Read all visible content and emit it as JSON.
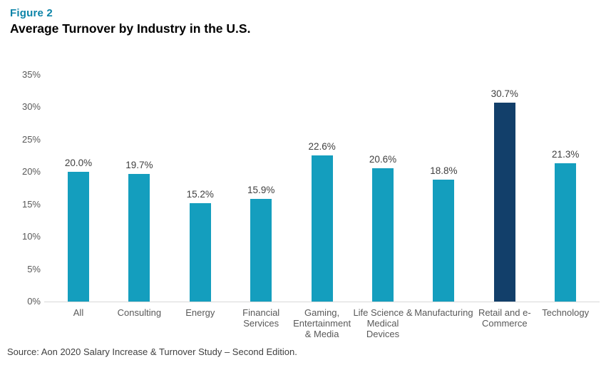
{
  "figure_label": "Figure 2",
  "title": "Average Turnover by Industry in the U.S.",
  "source": "Source: Aon 2020 Salary Increase & Turnover Study – Second Edition.",
  "colors": {
    "figure_label_text": "#0C84A8",
    "title_text": "#000000",
    "axis_text": "#595959",
    "value_label_text": "#404040",
    "source_text": "#404040",
    "baseline": "#D9D9D9",
    "bar": "#149EBE",
    "bar_highlight": "#123F6A"
  },
  "chart_data": {
    "type": "bar",
    "title": "Average Turnover by Industry in the U.S.",
    "xlabel": "",
    "ylabel": "",
    "categories": [
      "All",
      "Consulting",
      "Energy",
      "Financial Services",
      "Gaming, Entertainment & Media",
      "Life Science & Medical Devices",
      "Manufacturing",
      "Retail and e-Commerce",
      "Technology"
    ],
    "category_label_lines": [
      [
        "All"
      ],
      [
        "Consulting"
      ],
      [
        "Energy"
      ],
      [
        "Financial",
        "Services"
      ],
      [
        "Gaming,",
        "Entertainment",
        "& Media"
      ],
      [
        "Life Science &",
        "Medical",
        "Devices"
      ],
      [
        "Manufacturing"
      ],
      [
        "Retail and e-",
        "Commerce"
      ],
      [
        "Technology"
      ]
    ],
    "values": [
      20.0,
      19.7,
      15.2,
      15.9,
      22.6,
      20.6,
      18.8,
      30.7,
      21.3
    ],
    "value_labels": [
      "20.0%",
      "19.7%",
      "15.2%",
      "15.9%",
      "22.6%",
      "20.6%",
      "18.8%",
      "30.7%",
      "21.3%"
    ],
    "highlight_index": 7,
    "ylim": [
      0,
      35
    ],
    "ytick_step": 5,
    "ytick_labels": [
      "0%",
      "5%",
      "10%",
      "15%",
      "20%",
      "25%",
      "30%",
      "35%"
    ],
    "grid": false,
    "legend_position": "none"
  }
}
